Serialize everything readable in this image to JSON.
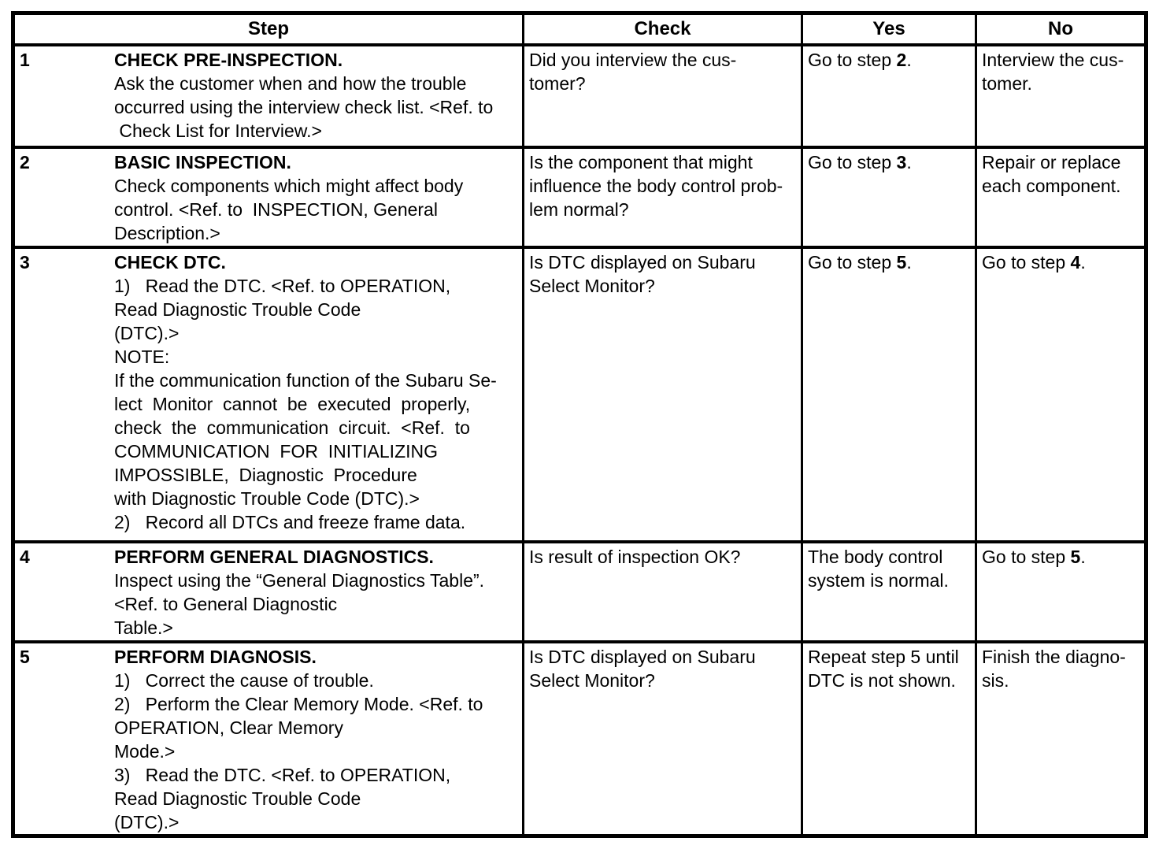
{
  "table": {
    "header": {
      "step": "Step",
      "check": "Check",
      "yes": "Yes",
      "no": "No"
    },
    "rows": [
      {
        "number": "1",
        "step": [
          "**CHECK PRE-INSPECTION.**",
          "Ask the customer when and how the trouble",
          "occurred using the interview check list. <Ref. to",
          " Check List for Interview.>"
        ],
        "check": [
          "Did you interview the cus-",
          "tomer?"
        ],
        "yes": [
          "Go to step **2**."
        ],
        "no": [
          "Interview the cus-",
          "tomer."
        ]
      },
      {
        "number": "2",
        "step": [
          "**BASIC INSPECTION.**",
          "Check components which might affect body",
          "control. <Ref. to  INSPECTION, General",
          "Description.>"
        ],
        "check": [
          "Is the component that might",
          "influence the body control prob-",
          "lem normal?"
        ],
        "yes": [
          "Go to step **3**."
        ],
        "no": [
          "Repair or replace",
          "each component."
        ]
      },
      {
        "number": "3",
        "step": [
          "**CHECK DTC.**",
          "1)   Read the DTC. <Ref. to OPERATION,",
          "Read Diagnostic Trouble Code",
          "(DTC).>",
          "NOTE:",
          "If the communication function of the Subaru Se-",
          "lect  Monitor  cannot  be  executed  properly,",
          "check  the  communication  circuit.  <Ref.  to",
          "COMMUNICATION  FOR  INITIALIZING",
          "IMPOSSIBLE,  Diagnostic  Procedure",
          "with Diagnostic Trouble Code (DTC).>",
          "2)   Record all DTCs and freeze frame data."
        ],
        "check": [
          "Is DTC displayed on Subaru",
          "Select Monitor?"
        ],
        "yes": [
          "Go to step **5**."
        ],
        "no": [
          "Go to step **4**."
        ]
      },
      {
        "number": "4",
        "step": [
          "**PERFORM GENERAL DIAGNOSTICS.**",
          "Inspect using the “General Diagnostics Table”.",
          "<Ref. to General Diagnostic",
          "Table.>"
        ],
        "check": [
          "Is result of inspection OK?"
        ],
        "yes": [
          "The body control",
          "system is normal."
        ],
        "no": [
          "Go to step **5**."
        ]
      },
      {
        "number": "5",
        "step": [
          "**PERFORM DIAGNOSIS.**",
          "1)   Correct the cause of trouble.",
          "2)   Perform the Clear Memory Mode. <Ref. to",
          "OPERATION, Clear Memory",
          "Mode.>",
          "3)   Read the DTC. <Ref. to OPERATION,",
          "Read Diagnostic Trouble Code",
          "(DTC).>"
        ],
        "check": [
          "Is DTC displayed on Subaru",
          "Select Monitor?"
        ],
        "yes": [
          "Repeat step 5 until",
          "DTC is not shown."
        ],
        "no": [
          "Finish the diagno-",
          "sis."
        ]
      }
    ]
  }
}
